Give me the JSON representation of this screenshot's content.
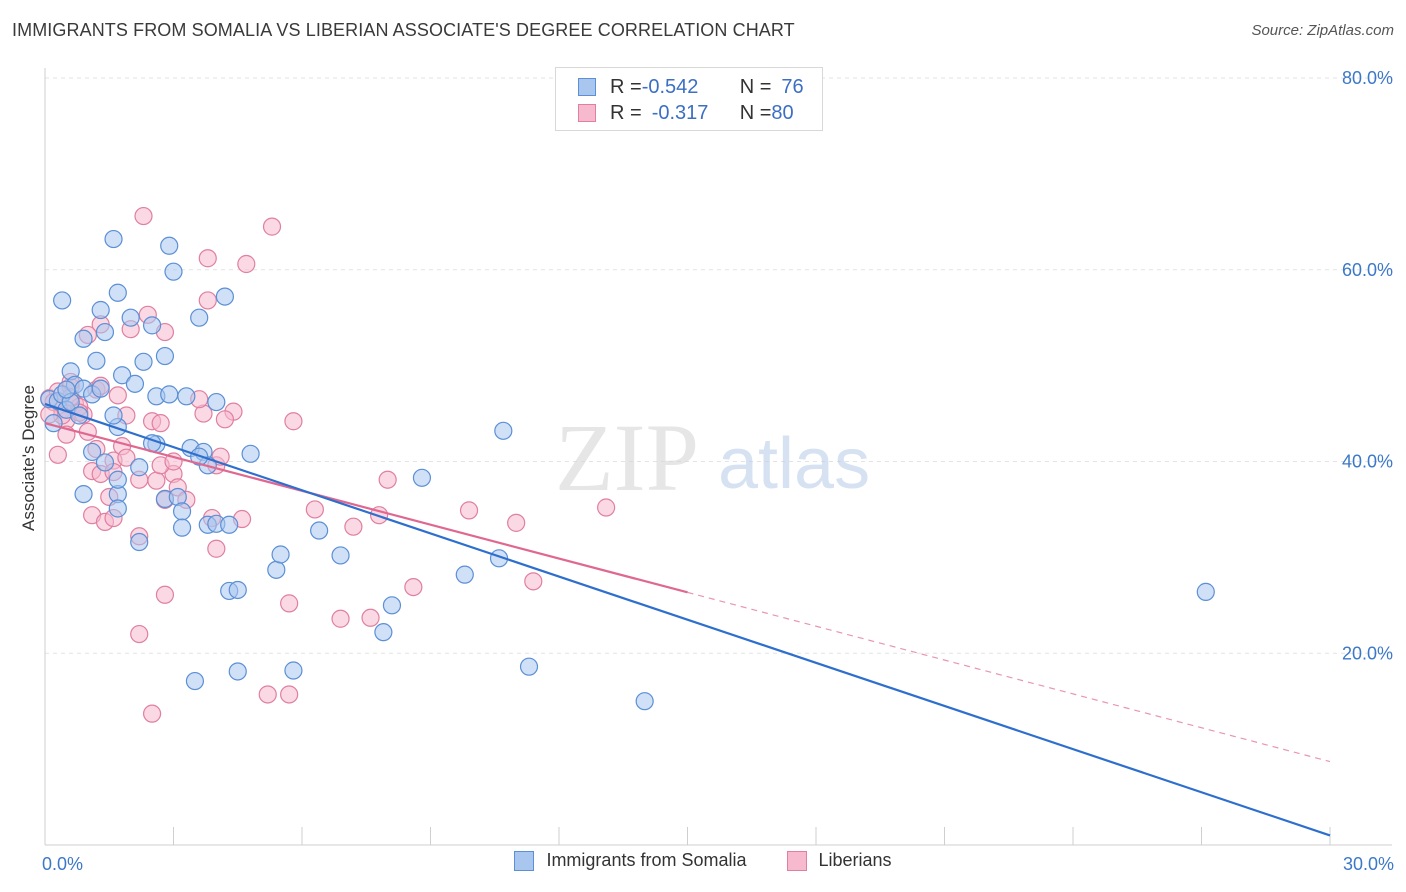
{
  "title": "IMMIGRANTS FROM SOMALIA VS LIBERIAN ASSOCIATE'S DEGREE CORRELATION CHART",
  "source": "Source: ZipAtlas.com",
  "watermark": {
    "zip": "ZIP",
    "atlas": "atlas"
  },
  "legend_stats": [
    {
      "r_label": "R = ",
      "r_value": "-0.542",
      "n_label": "N = ",
      "n_value": "76"
    },
    {
      "r_label": "R = ",
      "r_value": "-0.317",
      "n_label": "N = ",
      "n_value": "80"
    }
  ],
  "colors": {
    "somalia_fill": "#a9c7ee",
    "somalia_stroke": "#5b8fd6",
    "somalia_line": "#2e6fce",
    "liberian_fill": "#f6b9cd",
    "liberian_stroke": "#e07fa0",
    "liberian_line": "#e06890",
    "tick_text": "#3c78c8",
    "grid": "#e3e3e3"
  },
  "chart_data": {
    "type": "scatter",
    "xlabel": "",
    "ylabel": "Associate's Degree",
    "xlim": [
      0,
      30
    ],
    "ylim": [
      0,
      80
    ],
    "x_tick_labels": [
      {
        "value": 0,
        "label": "0.0%"
      },
      {
        "value": 30,
        "label": "30.0%"
      }
    ],
    "y_tick_labels": [
      {
        "value": 20,
        "label": "20.0%"
      },
      {
        "value": 40,
        "label": "40.0%"
      },
      {
        "value": 60,
        "label": "60.0%"
      },
      {
        "value": 80,
        "label": "80.0%"
      }
    ],
    "grid": true,
    "legend_placement": "top-center and bottom",
    "series": [
      {
        "name": "Immigrants from Somalia",
        "trend": {
          "x0": 0,
          "y0": 46.0,
          "x1": 30,
          "y1": 1.0,
          "solid_until": 30
        },
        "points": [
          [
            0.1,
            46.5
          ],
          [
            0.3,
            46.3
          ],
          [
            0.4,
            47.0
          ],
          [
            0.5,
            45.4
          ],
          [
            0.6,
            46.2
          ],
          [
            0.4,
            56.8
          ],
          [
            0.6,
            49.4
          ],
          [
            0.7,
            48.0
          ],
          [
            0.9,
            47.6
          ],
          [
            1.1,
            47.0
          ],
          [
            0.9,
            52.8
          ],
          [
            1.2,
            50.5
          ],
          [
            1.3,
            55.8
          ],
          [
            1.4,
            53.5
          ],
          [
            1.6,
            63.2
          ],
          [
            1.7,
            57.6
          ],
          [
            1.8,
            49.0
          ],
          [
            2.1,
            48.1
          ],
          [
            2.0,
            55.0
          ],
          [
            2.3,
            50.4
          ],
          [
            2.5,
            54.2
          ],
          [
            2.6,
            46.8
          ],
          [
            2.8,
            51.0
          ],
          [
            2.9,
            62.5
          ],
          [
            3.0,
            59.8
          ],
          [
            3.3,
            46.8
          ],
          [
            3.6,
            55.0
          ],
          [
            4.0,
            46.2
          ],
          [
            4.2,
            57.2
          ],
          [
            0.8,
            44.8
          ],
          [
            1.1,
            41.0
          ],
          [
            1.4,
            39.9
          ],
          [
            1.7,
            43.6
          ],
          [
            2.2,
            39.4
          ],
          [
            2.6,
            41.8
          ],
          [
            3.4,
            41.4
          ],
          [
            3.7,
            41.0
          ],
          [
            3.8,
            39.6
          ],
          [
            4.8,
            40.8
          ],
          [
            1.7,
            36.6
          ],
          [
            1.7,
            35.1
          ],
          [
            2.2,
            31.6
          ],
          [
            2.8,
            36.1
          ],
          [
            3.1,
            36.3
          ],
          [
            3.2,
            34.8
          ],
          [
            3.2,
            33.1
          ],
          [
            3.8,
            33.4
          ],
          [
            4.0,
            33.5
          ],
          [
            4.3,
            33.4
          ],
          [
            0.9,
            36.6
          ],
          [
            1.7,
            38.1
          ],
          [
            4.3,
            26.5
          ],
          [
            4.5,
            26.6
          ],
          [
            5.4,
            28.7
          ],
          [
            5.5,
            30.3
          ],
          [
            6.4,
            32.8
          ],
          [
            6.9,
            30.2
          ],
          [
            8.1,
            25.0
          ],
          [
            8.8,
            38.3
          ],
          [
            9.8,
            28.2
          ],
          [
            10.6,
            29.9
          ],
          [
            10.7,
            43.2
          ],
          [
            7.9,
            22.2
          ],
          [
            11.3,
            18.6
          ],
          [
            4.5,
            18.1
          ],
          [
            5.8,
            18.2
          ],
          [
            3.5,
            17.1
          ],
          [
            14.0,
            15.0
          ],
          [
            27.1,
            26.4
          ],
          [
            0.2,
            44.0
          ],
          [
            1.6,
            44.8
          ],
          [
            3.6,
            40.5
          ],
          [
            0.5,
            47.5
          ],
          [
            1.3,
            47.6
          ],
          [
            2.9,
            47.0
          ],
          [
            2.5,
            41.9
          ]
        ]
      },
      {
        "name": "Liberians",
        "trend": {
          "x0": 0,
          "y0": 44.0,
          "x1": 30,
          "y1": 8.7,
          "solid_until": 15
        },
        "points": [
          [
            0.1,
            46.6
          ],
          [
            0.3,
            47.3
          ],
          [
            0.4,
            45.4
          ],
          [
            0.5,
            44.3
          ],
          [
            0.6,
            47.8
          ],
          [
            0.7,
            46.0
          ],
          [
            0.9,
            44.9
          ],
          [
            0.8,
            45.7
          ],
          [
            0.5,
            42.8
          ],
          [
            0.3,
            40.7
          ],
          [
            1.0,
            43.1
          ],
          [
            1.1,
            39.0
          ],
          [
            1.3,
            38.7
          ],
          [
            1.2,
            41.3
          ],
          [
            1.5,
            36.3
          ],
          [
            1.6,
            40.1
          ],
          [
            1.6,
            38.9
          ],
          [
            1.8,
            41.6
          ],
          [
            1.9,
            40.4
          ],
          [
            2.2,
            38.1
          ],
          [
            2.6,
            38.0
          ],
          [
            2.5,
            44.2
          ],
          [
            3.0,
            38.7
          ],
          [
            3.1,
            37.3
          ],
          [
            3.3,
            36.0
          ],
          [
            3.7,
            45.0
          ],
          [
            4.0,
            39.6
          ],
          [
            4.4,
            45.2
          ],
          [
            1.1,
            34.4
          ],
          [
            1.4,
            33.7
          ],
          [
            1.6,
            34.1
          ],
          [
            2.2,
            32.2
          ],
          [
            2.8,
            36.0
          ],
          [
            3.9,
            34.1
          ],
          [
            4.6,
            34.0
          ],
          [
            4.0,
            30.9
          ],
          [
            2.8,
            26.1
          ],
          [
            5.8,
            44.2
          ],
          [
            6.3,
            35.0
          ],
          [
            7.2,
            33.2
          ],
          [
            7.8,
            34.4
          ],
          [
            8.0,
            38.1
          ],
          [
            8.6,
            26.9
          ],
          [
            9.9,
            34.9
          ],
          [
            11.0,
            33.6
          ],
          [
            11.4,
            27.5
          ],
          [
            13.1,
            35.2
          ],
          [
            2.2,
            22.0
          ],
          [
            5.7,
            25.2
          ],
          [
            6.9,
            23.6
          ],
          [
            7.6,
            23.7
          ],
          [
            5.2,
            15.7
          ],
          [
            5.7,
            15.7
          ],
          [
            2.5,
            13.7
          ],
          [
            2.3,
            65.6
          ],
          [
            5.3,
            64.5
          ],
          [
            3.8,
            61.2
          ],
          [
            4.7,
            60.6
          ],
          [
            3.8,
            56.8
          ],
          [
            2.4,
            55.3
          ],
          [
            2.8,
            53.5
          ],
          [
            1.3,
            54.3
          ],
          [
            1.0,
            53.2
          ],
          [
            2.0,
            53.8
          ],
          [
            0.6,
            48.3
          ],
          [
            0.2,
            46.2
          ],
          [
            0.4,
            44.8
          ],
          [
            1.2,
            47.5
          ],
          [
            1.7,
            46.9
          ],
          [
            2.7,
            44.0
          ],
          [
            3.6,
            46.5
          ],
          [
            4.2,
            44.4
          ],
          [
            4.1,
            40.5
          ],
          [
            2.7,
            39.6
          ],
          [
            1.3,
            47.9
          ],
          [
            0.8,
            45.1
          ],
          [
            1.9,
            44.8
          ],
          [
            3.0,
            40.0
          ],
          [
            0.1,
            44.9
          ],
          [
            0.6,
            46.7
          ]
        ]
      }
    ]
  }
}
